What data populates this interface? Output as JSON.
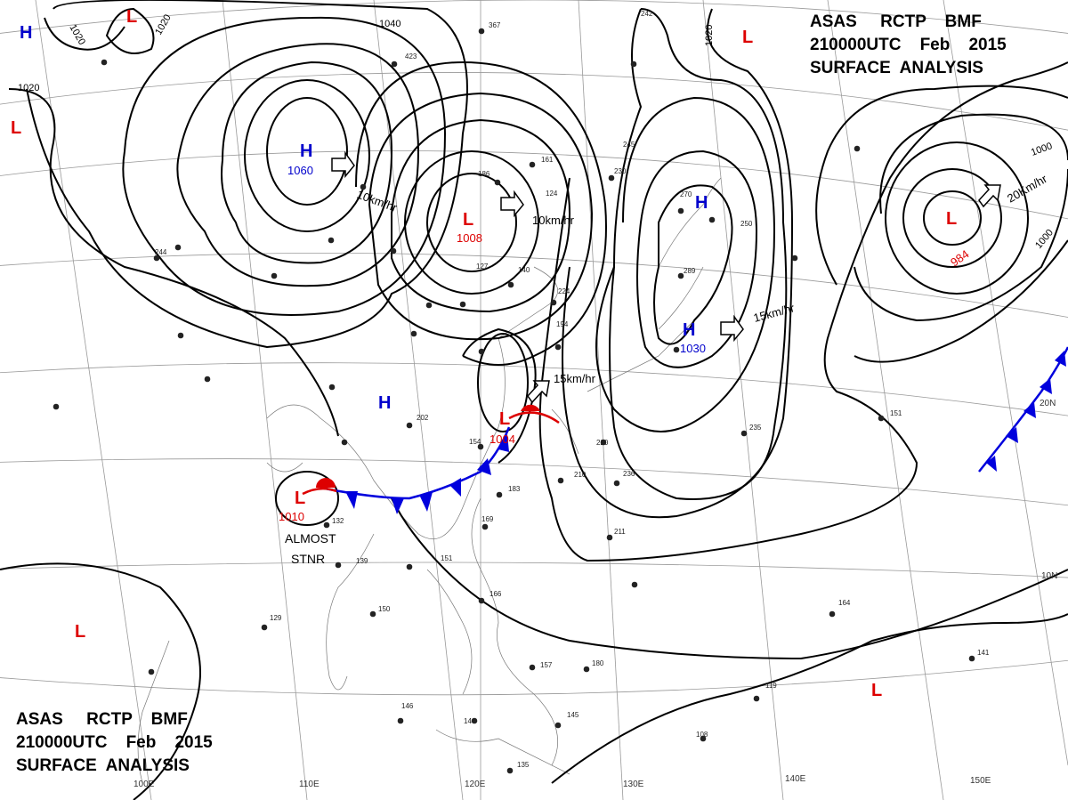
{
  "header_top_right": {
    "line1": "ASAS     RCTP    BMF",
    "line2": "210000UTC    Feb    2015",
    "line3": "SURFACE  ANALYSIS"
  },
  "header_bottom_left": {
    "line1": "ASAS     RCTP    BMF",
    "line2": "210000UTC    Feb    2015",
    "line3": "SURFACE  ANALYSIS"
  },
  "colors": {
    "high": "#0000cc",
    "low": "#dd0000",
    "cold_front": "#0000dd",
    "warm_front": "#dd0000",
    "isobar": "#000000",
    "grid": "#888888",
    "coast": "#888888"
  },
  "pressure_systems": [
    {
      "type": "H",
      "value": "1060"
    },
    {
      "type": "L",
      "value": "1008"
    },
    {
      "type": "L",
      "value": "984"
    },
    {
      "type": "H",
      "value": "1030"
    },
    {
      "type": "L",
      "value": "1004"
    },
    {
      "type": "L",
      "value": "1010"
    },
    {
      "type": "H",
      "value": ""
    },
    {
      "type": "H",
      "value": ""
    },
    {
      "type": "H",
      "value": ""
    },
    {
      "type": "L",
      "value": ""
    },
    {
      "type": "L",
      "value": ""
    },
    {
      "type": "L",
      "value": ""
    },
    {
      "type": "L",
      "value": ""
    },
    {
      "type": "L",
      "value": ""
    }
  ],
  "movements": [
    "10km/hr",
    "10km/hr",
    "15km/hr",
    "15km/hr",
    "20Km/hr"
  ],
  "isobar_labels": [
    "1040",
    "1020",
    "1020",
    "1020",
    "1020",
    "1000",
    "1000"
  ],
  "notes": {
    "almost": "ALMOST",
    "stnr": "STNR"
  },
  "lon_labels": [
    "100E",
    "110E",
    "120E",
    "130E",
    "140E",
    "150E"
  ],
  "lat_labels": [
    "20N",
    "10N"
  ],
  "station_samples": [
    "423",
    "245",
    "230",
    "161",
    "124",
    "186",
    "127",
    "140",
    "224",
    "194",
    "202",
    "154",
    "183",
    "169",
    "210",
    "220",
    "236",
    "211",
    "235",
    "151",
    "132",
    "139",
    "151",
    "150",
    "129",
    "146",
    "144",
    "135",
    "157",
    "166",
    "145",
    "164",
    "141",
    "108",
    "119",
    "180",
    "270",
    "289",
    "250",
    "244",
    "367",
    "242"
  ]
}
